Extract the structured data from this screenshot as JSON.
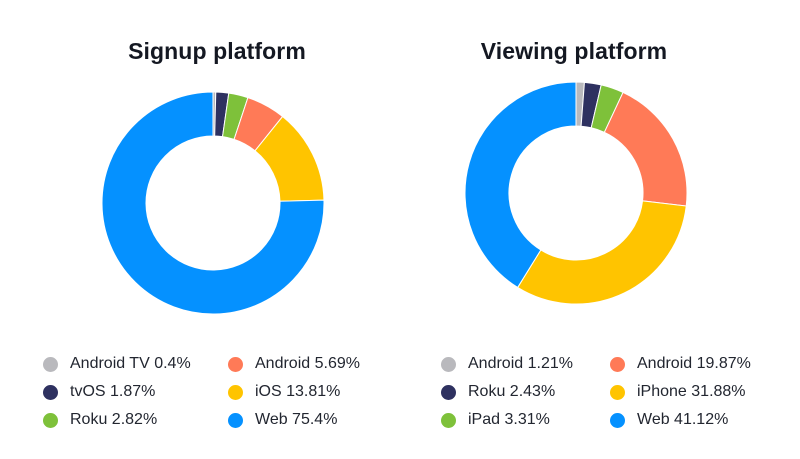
{
  "chart_data": [
    {
      "type": "pie",
      "title": "Signup platform",
      "series": [
        {
          "name": "Android TV",
          "label": "Android TV 0.4%",
          "value": 0.4,
          "color": "#b9b9bd"
        },
        {
          "name": "tvOS",
          "label": "tvOS 1.87%",
          "value": 1.87,
          "color": "#2e3160"
        },
        {
          "name": "Roku",
          "label": "Roku 2.82%",
          "value": 2.82,
          "color": "#7ec13a"
        },
        {
          "name": "Android",
          "label": "Android 5.69%",
          "value": 5.69,
          "color": "#ff7a57"
        },
        {
          "name": "iOS",
          "label": "iOS 13.81%",
          "value": 13.81,
          "color": "#ffc400"
        },
        {
          "name": "Web",
          "label": "Web 75.4%",
          "value": 75.4,
          "color": "#0591ff"
        }
      ],
      "legend_layout": "two-column, below chart"
    },
    {
      "type": "pie",
      "title": "Viewing platform",
      "series": [
        {
          "name": "Android",
          "label": "Android 1.21%",
          "value": 1.21,
          "color": "#b9b9bd"
        },
        {
          "name": "Roku",
          "label": "Roku 2.43%",
          "value": 2.43,
          "color": "#2e3160"
        },
        {
          "name": "iPad",
          "label": "iPad 3.31%",
          "value": 3.31,
          "color": "#7ec13a"
        },
        {
          "name": "Android",
          "label": "Android 19.87%",
          "value": 19.87,
          "color": "#ff7a57"
        },
        {
          "name": "iPhone",
          "label": "iPhone 31.88%",
          "value": 31.88,
          "color": "#ffc400"
        },
        {
          "name": "Web",
          "label": "Web 41.12%",
          "value": 41.12,
          "color": "#0591ff"
        }
      ],
      "legend_layout": "two-column, below chart"
    }
  ]
}
